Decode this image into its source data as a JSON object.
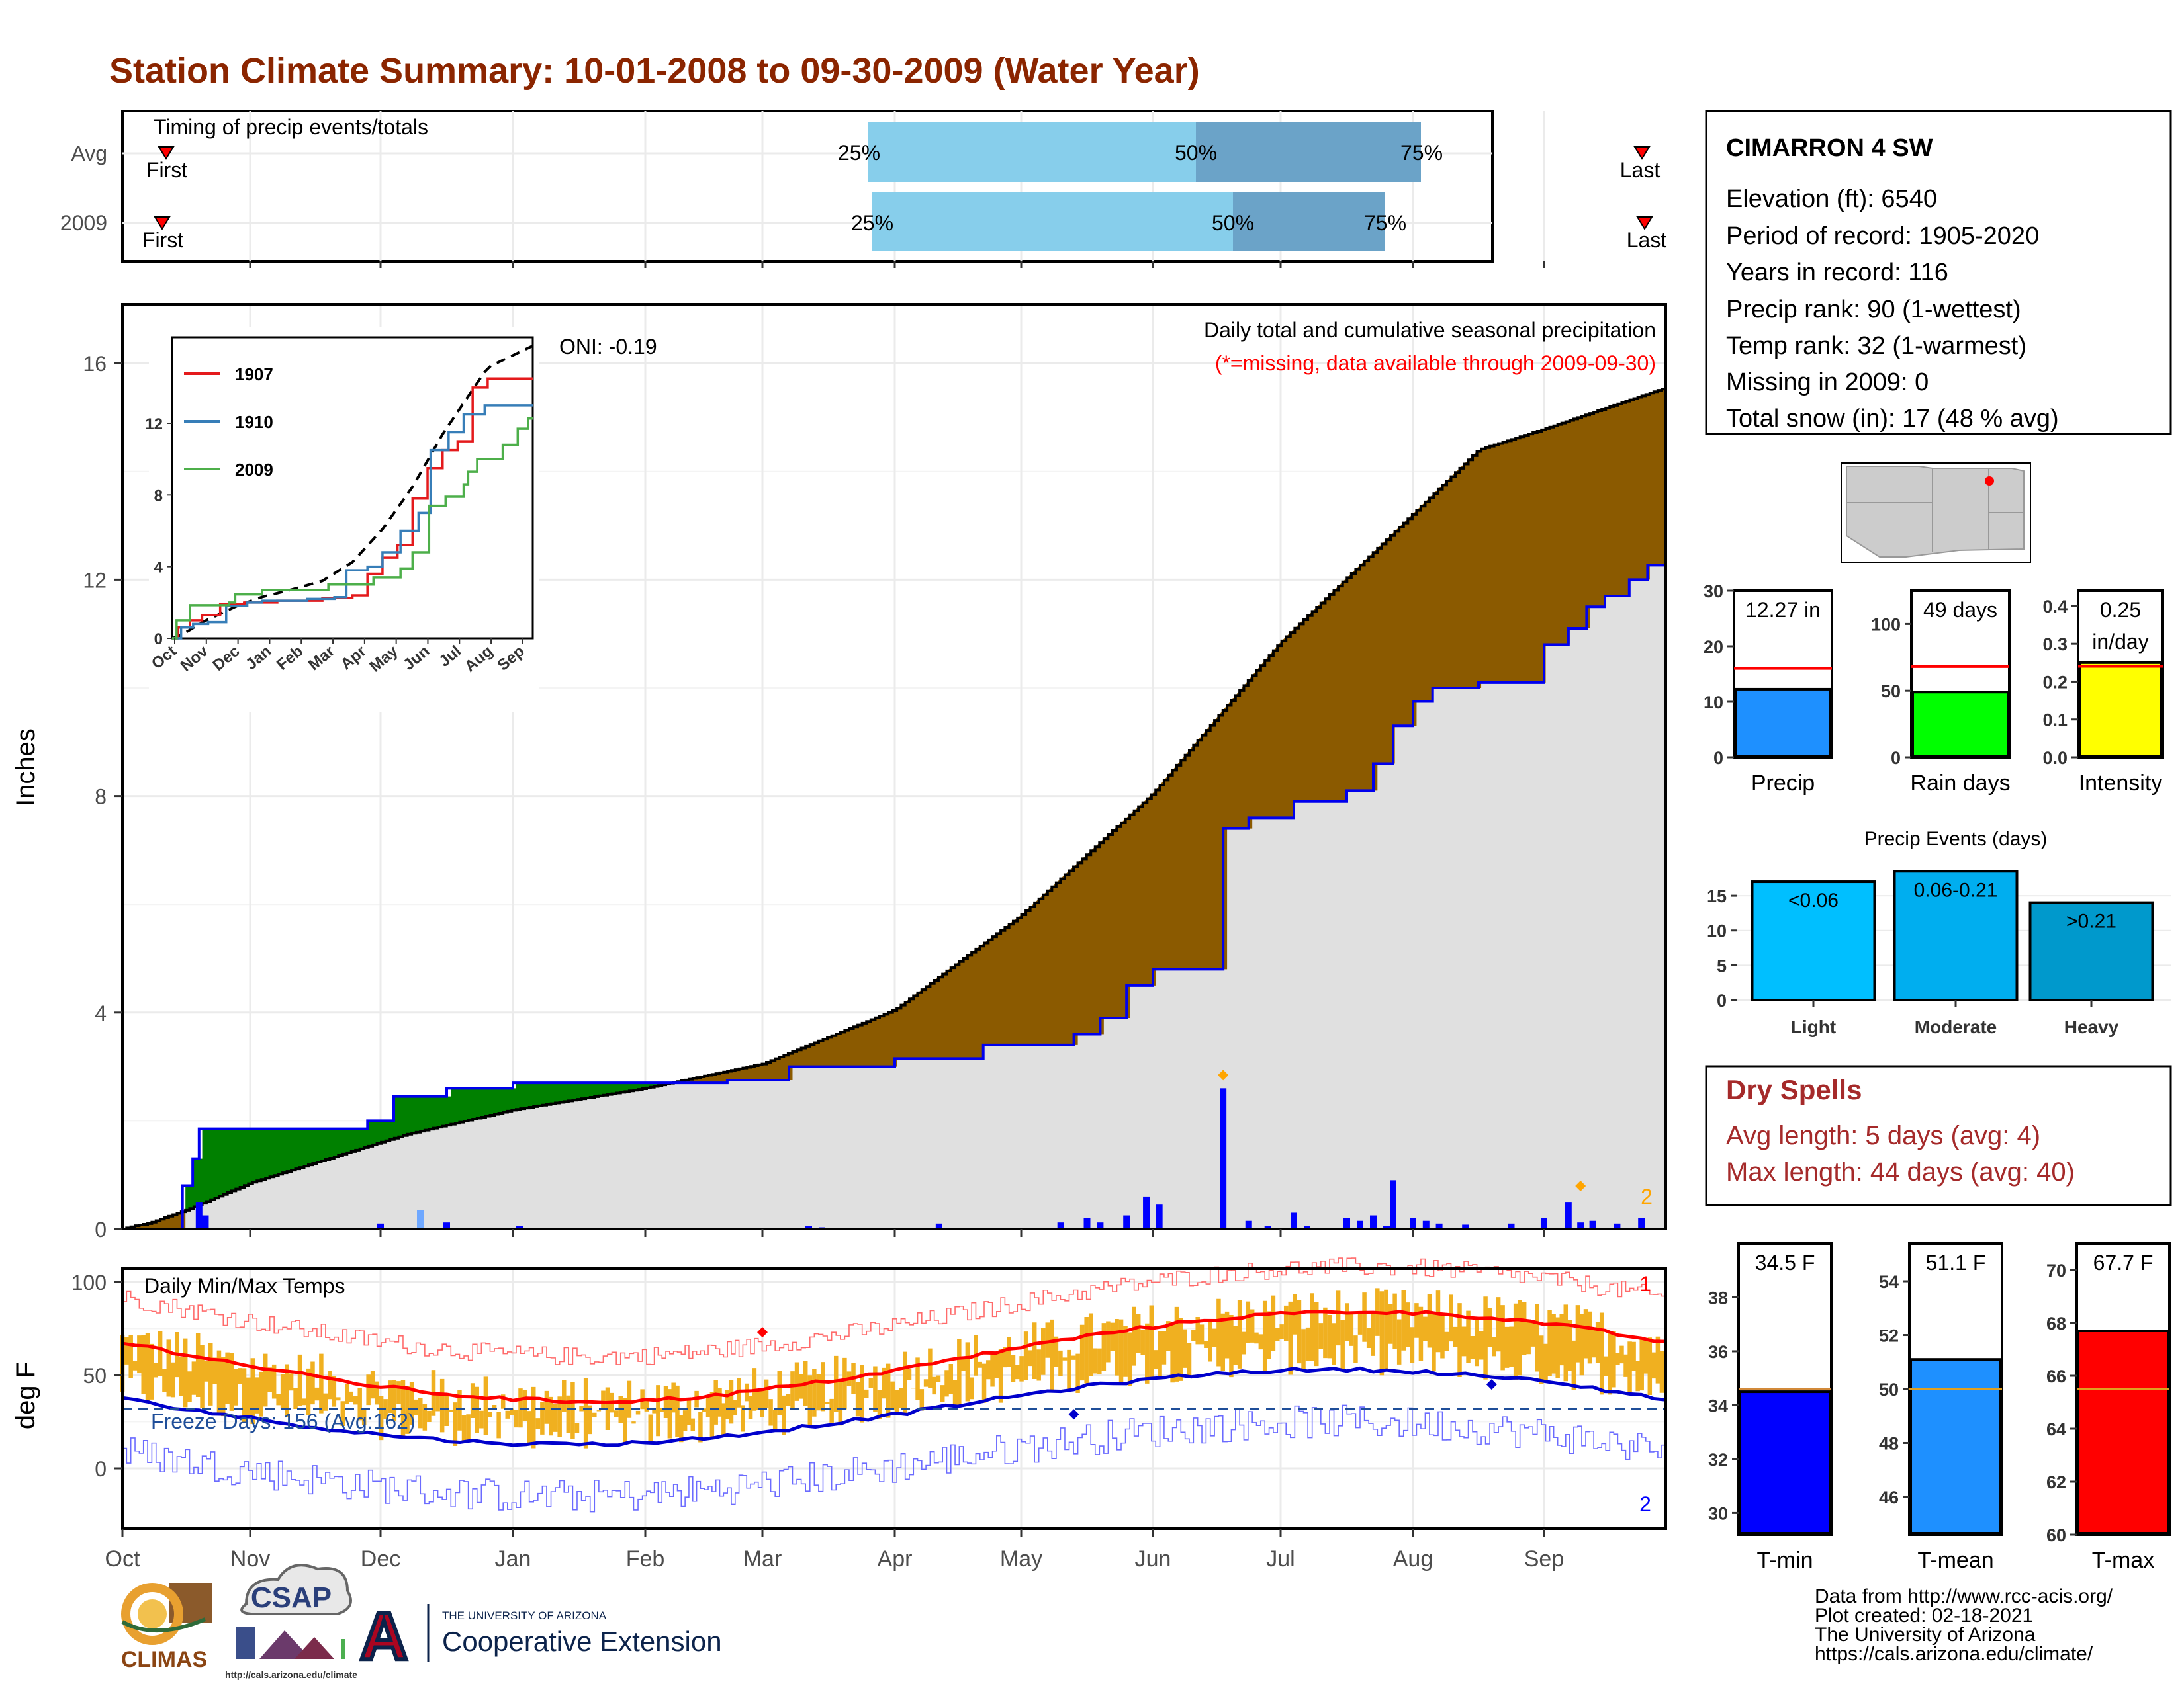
{
  "header": {
    "title": "Station Climate Summary: 10-01-2008 to 09-30-2009 (Water Year)"
  },
  "station": {
    "name": "CIMARRON 4 SW",
    "lines": [
      "Elevation (ft): 6540",
      "Period of record: 1905-2020",
      "Years in record: 116",
      "Precip rank: 90 (1-wettest)",
      "Temp rank: 32 (1-warmest)",
      "Missing in 2009: 0",
      "Total snow (in): 17 (48 % avg)"
    ]
  },
  "colors": {
    "title": "#8B2500",
    "deficit": "#8B5A00",
    "surplus": "#008000",
    "observed_line": "#0000EE",
    "light_blue": "#87CEEB",
    "mid_blue": "#6BA3C8",
    "precip_bar": "#1E90FF",
    "rain_days": "#00FF00",
    "intensity": "#FFFF00",
    "temp_bar": "#F0B020",
    "tmin": "#0000FF",
    "tmean": "#1E90FF",
    "tmax": "#FF0000",
    "dry_spell": "#A52A2A",
    "red_line": "#FF0000"
  },
  "timing": {
    "title": "Timing of precip events/totals",
    "rows": [
      {
        "label": "Avg",
        "first": "First",
        "last": "Last",
        "p25": "25%",
        "p50": "50%",
        "p75": "75%"
      },
      {
        "label": "2009",
        "first": "First",
        "last": "Last",
        "p25": "25%",
        "p50": "50%",
        "p75": "75%"
      }
    ]
  },
  "precip_panel": {
    "ylabel": "Inches",
    "oni": "ONI: -0.19",
    "subtitle": "Daily total and cumulative seasonal precipitation",
    "missing_note": "(*=missing, data available through 2009-09-30)",
    "top_count": "2",
    "yticks": [
      "0",
      "4",
      "8",
      "12",
      "16"
    ]
  },
  "inset": {
    "yticks": [
      "0",
      "4",
      "8",
      "12"
    ],
    "months": [
      "Oct",
      "Nov",
      "Dec",
      "Jan",
      "Feb",
      "Mar",
      "Apr",
      "May",
      "Jun",
      "Jul",
      "Aug",
      "Sep"
    ],
    "legend": [
      "1907",
      "1910",
      "2009"
    ]
  },
  "temp_panel": {
    "title": "Daily Min/Max Temps",
    "ylabel": "deg F",
    "freeze": "Freeze Days: 156 (Avg:162)",
    "count_top": "1",
    "count_bottom": "2",
    "yticks": [
      "0",
      "50",
      "100"
    ]
  },
  "months": [
    "Oct",
    "Nov",
    "Dec",
    "Jan",
    "Feb",
    "Mar",
    "Apr",
    "May",
    "Jun",
    "Jul",
    "Aug",
    "Sep"
  ],
  "chart_data": [
    {
      "type": "area",
      "title": "Daily total and cumulative seasonal precipitation",
      "ylabel": "Inches",
      "ylim": [
        0,
        16.5
      ],
      "x": [
        "Oct",
        "Nov",
        "Dec",
        "Jan",
        "Feb",
        "Mar",
        "Apr",
        "May",
        "Jun",
        "Jul",
        "Aug",
        "Sep",
        "Sep end"
      ],
      "series": [
        {
          "name": "Avg cumulative",
          "values": [
            0,
            1.2,
            1.8,
            2.3,
            2.7,
            3.2,
            3.9,
            4.9,
            6.6,
            8.4,
            10.8,
            14.0,
            15.5
          ]
        },
        {
          "name": "2009 cumulative",
          "values": [
            0,
            1.85,
            1.95,
            2.7,
            2.7,
            2.7,
            3.1,
            3.5,
            4.8,
            8.3,
            10.1,
            10.1,
            12.27
          ]
        }
      ],
      "daily_spikes": [
        {
          "month": "Oct",
          "value": 1.3
        },
        {
          "month": "Jun",
          "value": 2.6
        },
        {
          "month": "Aug",
          "value": 0.9
        },
        {
          "month": "Sep",
          "value": 0.5
        }
      ]
    },
    {
      "type": "bar",
      "title": "Precip",
      "categories": [
        "Precip"
      ],
      "values": [
        12.27
      ],
      "value_label": "12.27 in",
      "avg": 16,
      "ylim": [
        0,
        30
      ],
      "yticks": [
        "0",
        "10",
        "20",
        "30"
      ]
    },
    {
      "type": "bar",
      "title": "Rain days",
      "categories": [
        "Rain days"
      ],
      "values": [
        49
      ],
      "value_label": "49 days",
      "avg": 68,
      "ylim": [
        0,
        125
      ],
      "yticks": [
        "0",
        "50",
        "100"
      ]
    },
    {
      "type": "bar",
      "title": "Intensity",
      "categories": [
        "Intensity"
      ],
      "values": [
        0.25
      ],
      "value_label": "0.25",
      "value_label2": "in/day",
      "avg": 0.24,
      "ylim": [
        0,
        0.44
      ],
      "yticks": [
        "0.0",
        "0.1",
        "0.2",
        "0.3",
        "0.4"
      ]
    },
    {
      "type": "bar",
      "title": "Precip Events (days)",
      "categories": [
        "Light",
        "Moderate",
        "Heavy"
      ],
      "values": [
        17,
        18.5,
        14
      ],
      "labels": [
        "<0.06",
        "0.06-0.21",
        ">0.21"
      ],
      "ylim": [
        0,
        19
      ],
      "yticks": [
        "0",
        "5",
        "10",
        "15"
      ]
    },
    {
      "type": "bar",
      "title": "T-min",
      "categories": [
        "T-min"
      ],
      "values": [
        34.5
      ],
      "value_label": "34.5 F",
      "avg": 34.6,
      "ylim": [
        29.2,
        40
      ],
      "yticks": [
        "30",
        "32",
        "34",
        "36",
        "38"
      ]
    },
    {
      "type": "bar",
      "title": "T-mean",
      "categories": [
        "T-mean"
      ],
      "values": [
        51.1
      ],
      "value_label": "51.1 F",
      "avg": 50,
      "ylim": [
        44.6,
        55.4
      ],
      "yticks": [
        "46",
        "48",
        "50",
        "52",
        "54"
      ]
    },
    {
      "type": "bar",
      "title": "T-max",
      "categories": [
        "T-max"
      ],
      "values": [
        67.7
      ],
      "value_label": "67.7 F",
      "avg": 65.5,
      "ylim": [
        60,
        71
      ],
      "yticks": [
        "60",
        "62",
        "64",
        "66",
        "68",
        "70"
      ]
    }
  ],
  "dry_spells": {
    "title": "Dry Spells",
    "avg": "Avg length: 5 days (avg: 4)",
    "max": "Max length: 44 days (avg: 40)"
  },
  "footer": {
    "credits": [
      "Data from http://www.rcc-acis.org/",
      "Plot created: 02-18-2021",
      "The University of Arizona",
      "https://cals.arizona.edu/climate/"
    ],
    "climas": "CLIMAS",
    "csap": "CSAP",
    "csap_url": "http://cals.arizona.edu/climate",
    "ua_small": "THE UNIVERSITY OF ARIZONA",
    "ua_big": "Cooperative Extension",
    "ua_letter": "A"
  }
}
